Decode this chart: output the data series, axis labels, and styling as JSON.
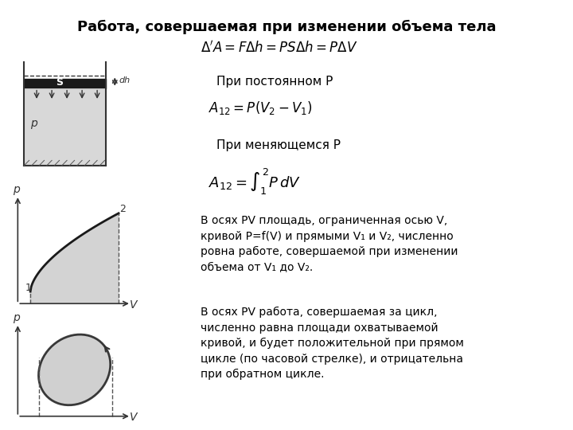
{
  "title": "Работа, совершаемая при изменении объема тела",
  "bg_color": "#ffffff",
  "text_color": "#000000",
  "formula1": "$\\Delta'A = F\\Delta h = PS\\Delta h = P\\Delta V$",
  "label_const_p": "При постоянном P",
  "formula2": "$A_{12} = P(V_2 - V_1)$",
  "label_var_p": "При меняющемся P",
  "formula3": "$A_{12} = \\int_1^2 P\\,dV$",
  "text_pv1": "В осях PV площадь, ограниченная осью V,\nкривой P=f(V) и прямыми V₁ и V₂, численно\nровна работе, совершаемой при изменении\nобъема от V₁ до V₂.",
  "text_pv2": "В осях PV работа, совершаемая за цикл,\nчисленно равна площади охватываемой\nкривой, и будет положительной при прямом\nцикле (по часовой стрелке), и отрицательна\nпри обратном цикле.",
  "shading_color": "#c8c8c8",
  "curve_color": "#1a1a1a",
  "axis_label_color": "#1a1a1a"
}
